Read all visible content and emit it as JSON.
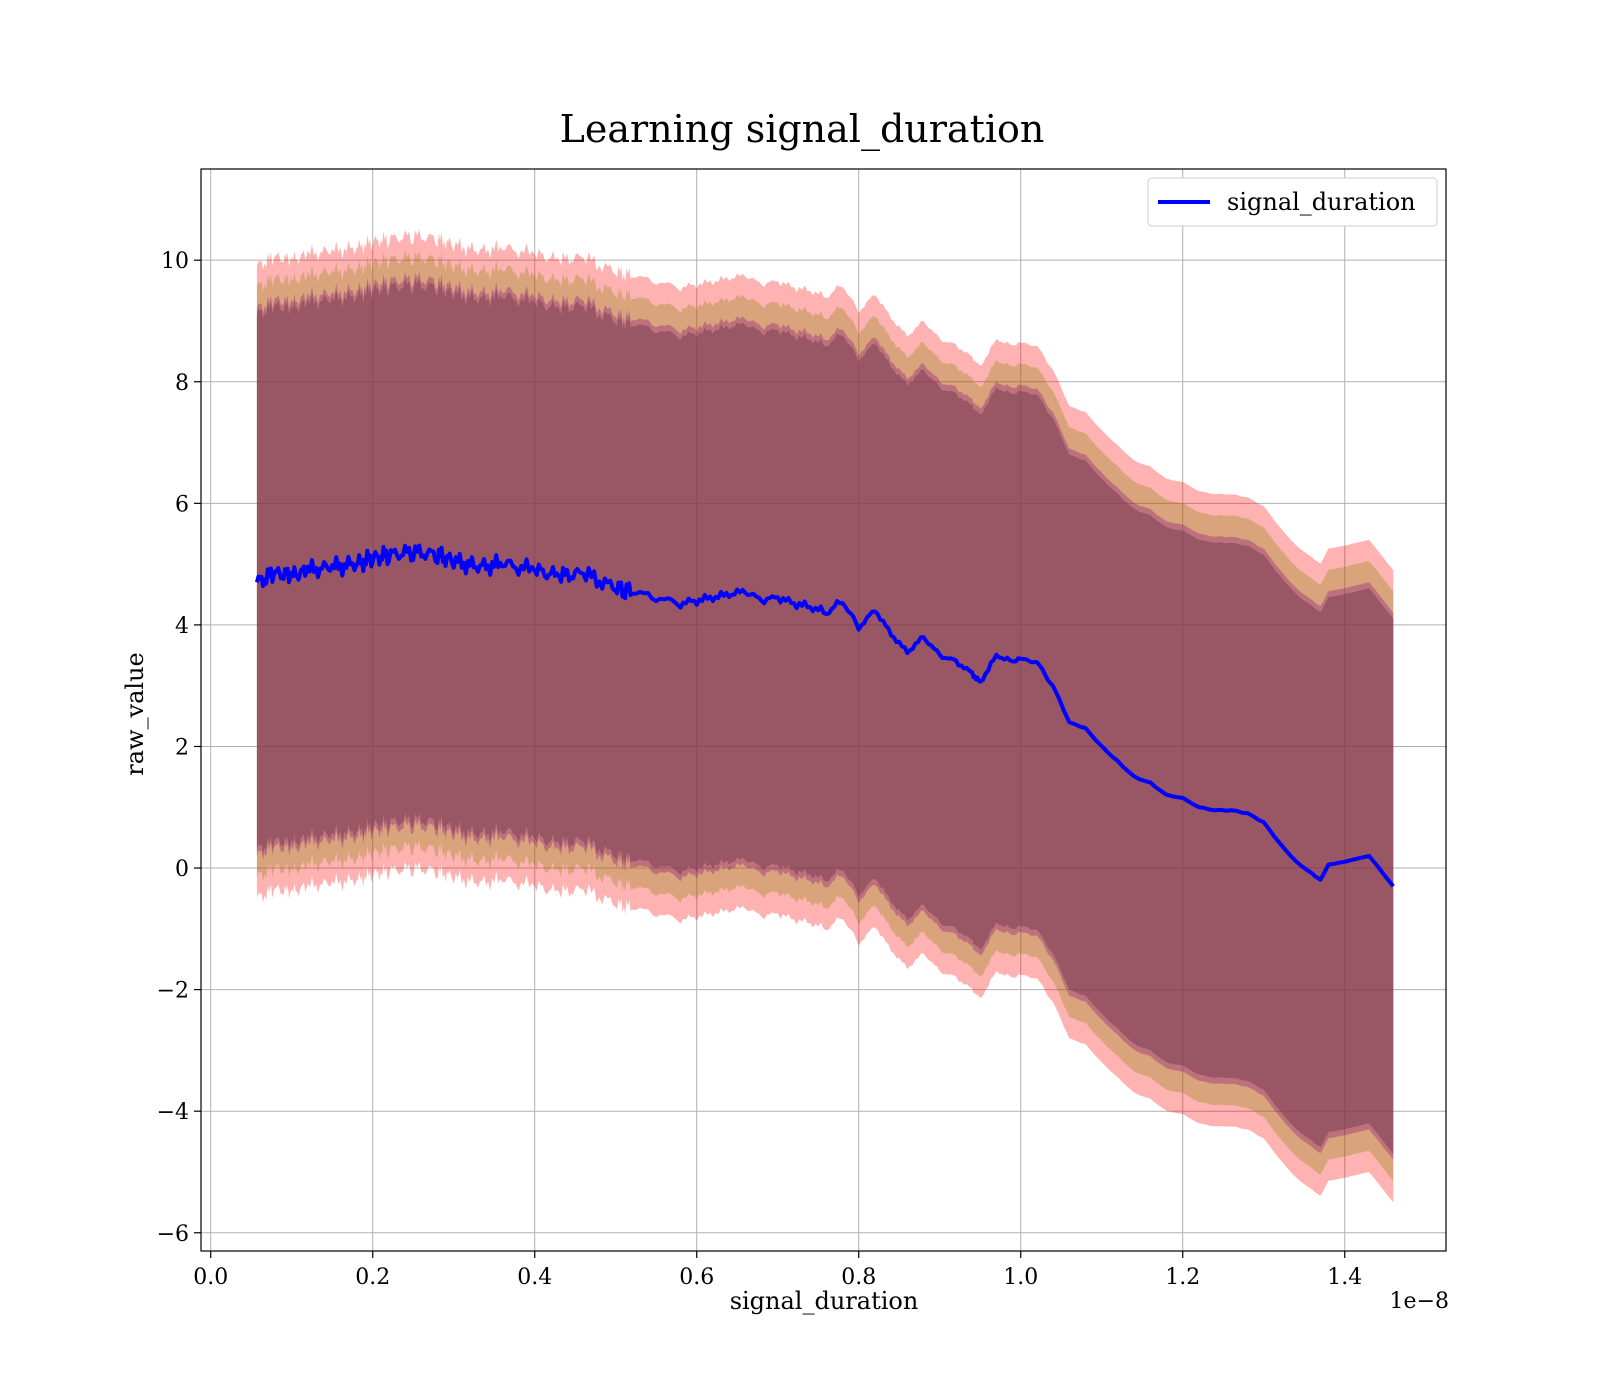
{
  "chart_data": {
    "type": "line",
    "title": "Learning signal_duration",
    "xlabel": "signal_duration",
    "ylabel": "raw_value",
    "x_scale_label": "1e−8",
    "xlim": [
      -0.012,
      1.525
    ],
    "ylim": [
      -6.3,
      11.5
    ],
    "xticks": [
      0.0,
      0.2,
      0.4,
      0.6,
      0.8,
      1.0,
      1.2,
      1.4
    ],
    "xtick_labels": [
      "0.0",
      "0.2",
      "0.4",
      "0.6",
      "0.8",
      "1.0",
      "1.2",
      "1.4"
    ],
    "yticks": [
      -6,
      -4,
      -2,
      0,
      2,
      4,
      6,
      8,
      10
    ],
    "ytick_labels": [
      "−6",
      "−4",
      "−2",
      "0",
      "2",
      "4",
      "6",
      "8",
      "10"
    ],
    "grid": true,
    "legend_position": "top-right",
    "series": [
      {
        "name": "signal_duration",
        "color": "#0000ff",
        "x": [
          0.057,
          0.08,
          0.1,
          0.12,
          0.15,
          0.18,
          0.2,
          0.22,
          0.25,
          0.28,
          0.3,
          0.33,
          0.36,
          0.4,
          0.43,
          0.46,
          0.5,
          0.52,
          0.55,
          0.58,
          0.6,
          0.62,
          0.64,
          0.66,
          0.68,
          0.7,
          0.72,
          0.74,
          0.76,
          0.78,
          0.8,
          0.82,
          0.84,
          0.86,
          0.88,
          0.9,
          0.92,
          0.94,
          0.95,
          0.97,
          0.99,
          1.0,
          1.02,
          1.04,
          1.06,
          1.08,
          1.1,
          1.12,
          1.14,
          1.16,
          1.18,
          1.2,
          1.22,
          1.24,
          1.26,
          1.28,
          1.3,
          1.32,
          1.34,
          1.36,
          1.37,
          1.38,
          1.4,
          1.43,
          1.46
        ],
        "y": [
          4.7,
          4.85,
          4.8,
          4.9,
          4.95,
          5.0,
          5.1,
          5.15,
          5.2,
          5.15,
          5.05,
          4.95,
          5.0,
          4.9,
          4.8,
          4.85,
          4.6,
          4.55,
          4.45,
          4.35,
          4.4,
          4.45,
          4.5,
          4.55,
          4.4,
          4.45,
          4.35,
          4.3,
          4.2,
          4.4,
          3.95,
          4.25,
          3.85,
          3.55,
          3.8,
          3.5,
          3.4,
          3.2,
          3.05,
          3.5,
          3.4,
          3.45,
          3.4,
          3.0,
          2.4,
          2.3,
          2.0,
          1.75,
          1.5,
          1.4,
          1.2,
          1.15,
          1.0,
          0.95,
          0.95,
          0.9,
          0.75,
          0.4,
          0.1,
          -0.1,
          -0.2,
          0.05,
          0.1,
          0.2,
          -0.3
        ],
        "band_outer_half_width": 5.2,
        "band_inner_half_width": 4.5
      }
    ]
  }
}
